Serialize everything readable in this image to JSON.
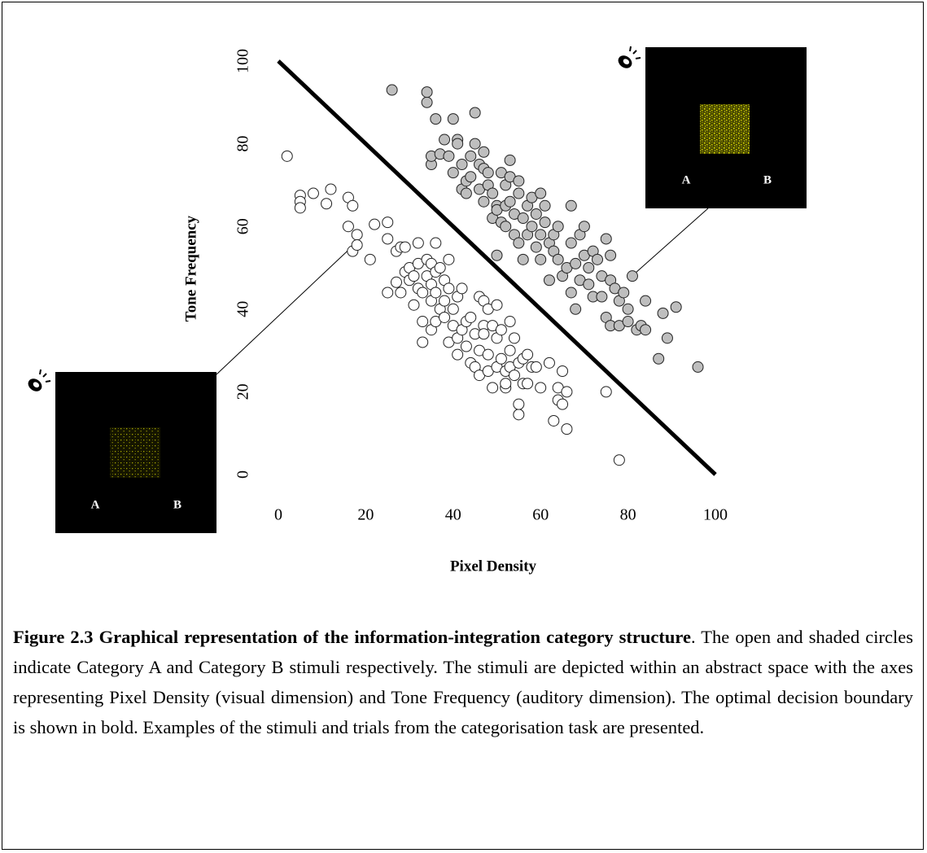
{
  "chart_data": {
    "type": "scatter",
    "xlabel": "Pixel Density",
    "ylabel": "Tone Frequency",
    "xlim": [
      0,
      100
    ],
    "ylim": [
      0,
      100
    ],
    "xticks": [
      0,
      20,
      40,
      60,
      80,
      100
    ],
    "yticks": [
      0,
      20,
      40,
      60,
      80,
      100
    ],
    "boundary": {
      "x": [
        0,
        100
      ],
      "y": [
        100,
        0
      ],
      "color": "#000000"
    },
    "series": [
      {
        "color": "#ffffff",
        "x": [
          2,
          5,
          5,
          5,
          8,
          12,
          11,
          16,
          17,
          16,
          17,
          18,
          18,
          21,
          22,
          25,
          25,
          25,
          27,
          27,
          28,
          28,
          29,
          29,
          30,
          30,
          31,
          31,
          32,
          32,
          32,
          33,
          33,
          33,
          34,
          34,
          35,
          35,
          35,
          35,
          36,
          36,
          36,
          36,
          37,
          37,
          38,
          38,
          38,
          39,
          39,
          39,
          40,
          40,
          41,
          41,
          41,
          42,
          42,
          43,
          43,
          44,
          44,
          45,
          45,
          46,
          46,
          46,
          47,
          47,
          47,
          48,
          48,
          48,
          49,
          49,
          50,
          50,
          50,
          51,
          51,
          52,
          52,
          52,
          53,
          53,
          53,
          54,
          54,
          55,
          55,
          55,
          56,
          56,
          57,
          57,
          58,
          59,
          60,
          62,
          63,
          64,
          64,
          65,
          65,
          66,
          66,
          75,
          78
        ],
        "values": [
          77,
          67.5,
          66,
          64.5,
          68,
          69,
          65.5,
          67,
          65,
          60,
          54,
          58,
          55.5,
          52,
          60.5,
          44,
          57,
          61,
          54,
          46.5,
          44,
          55,
          49,
          55,
          47,
          50,
          48,
          41,
          56,
          45,
          51,
          37,
          32,
          44,
          52,
          48,
          42,
          35,
          46,
          51,
          49,
          44,
          56,
          37,
          50,
          40,
          47,
          42,
          38,
          52,
          45,
          32,
          40,
          36,
          43,
          33,
          29,
          45,
          35,
          31,
          37,
          27,
          38,
          26,
          34,
          43,
          24,
          30,
          42,
          36,
          34,
          25,
          29,
          40,
          21,
          36,
          33,
          41,
          26,
          35,
          28,
          21,
          25,
          22,
          37,
          30,
          26,
          24,
          33,
          14.5,
          17,
          27,
          22,
          28,
          29,
          22,
          26,
          26,
          21,
          27,
          13,
          18,
          21,
          17,
          25,
          11,
          20,
          20,
          3.5
        ]
      },
      {
        "color": "#bebebe",
        "x": [
          26,
          34,
          34,
          35,
          35,
          36,
          37,
          38,
          39,
          40,
          40,
          41,
          41,
          42,
          42,
          43,
          43,
          44,
          44,
          45,
          45,
          46,
          46,
          47,
          47,
          47,
          48,
          48,
          49,
          49,
          50,
          50,
          50,
          51,
          51,
          52,
          52,
          52,
          53,
          53,
          53,
          54,
          54,
          55,
          55,
          55,
          56,
          56,
          57,
          57,
          58,
          58,
          59,
          59,
          60,
          60,
          60,
          61,
          61,
          62,
          62,
          63,
          63,
          64,
          64,
          65,
          66,
          67,
          67,
          67,
          68,
          68,
          69,
          69,
          70,
          70,
          71,
          71,
          72,
          72,
          73,
          74,
          74,
          75,
          75,
          76,
          76,
          76,
          77,
          78,
          78,
          79,
          80,
          80,
          81,
          82,
          83,
          84,
          84,
          87,
          88,
          89,
          91,
          96
        ],
        "values": [
          93,
          90,
          92.5,
          75,
          77,
          86,
          77.5,
          81,
          77,
          86,
          73,
          81,
          80,
          75,
          69,
          71,
          68,
          77,
          72,
          80,
          87.5,
          69,
          75,
          66,
          74,
          78,
          70,
          73,
          62,
          68,
          65,
          64,
          53,
          61,
          73,
          70,
          65,
          60,
          76,
          72,
          66,
          58,
          63,
          71,
          56,
          68,
          62,
          52,
          65,
          58,
          67,
          60,
          63,
          55,
          68,
          58,
          52,
          65,
          61,
          56,
          47,
          58,
          54,
          60,
          52,
          48,
          50,
          56,
          65,
          44,
          40,
          51,
          58,
          47,
          53,
          60,
          50,
          46,
          43,
          54,
          52,
          48,
          43,
          38,
          57,
          47,
          53,
          36,
          45,
          42,
          36,
          44,
          37,
          40,
          48,
          35,
          36,
          35,
          42,
          28,
          39,
          33,
          40.5,
          26
        ]
      }
    ]
  },
  "insets": [
    {
      "left": "A",
      "right": "B"
    },
    {
      "left": "A",
      "right": "B"
    }
  ],
  "caption": {
    "title": "Figure 2.3 Graphical representation of the information-integration category structure",
    "text": ". The open and shaded circles indicate Category A and Category B stimuli respectively. The stimuli are depicted within an abstract space with the axes representing Pixel Density (visual dimension) and Tone Frequency (auditory dimension). The optimal decision boundary is shown in bold. Examples of the stimuli and trials from the categorisation task are presented."
  }
}
